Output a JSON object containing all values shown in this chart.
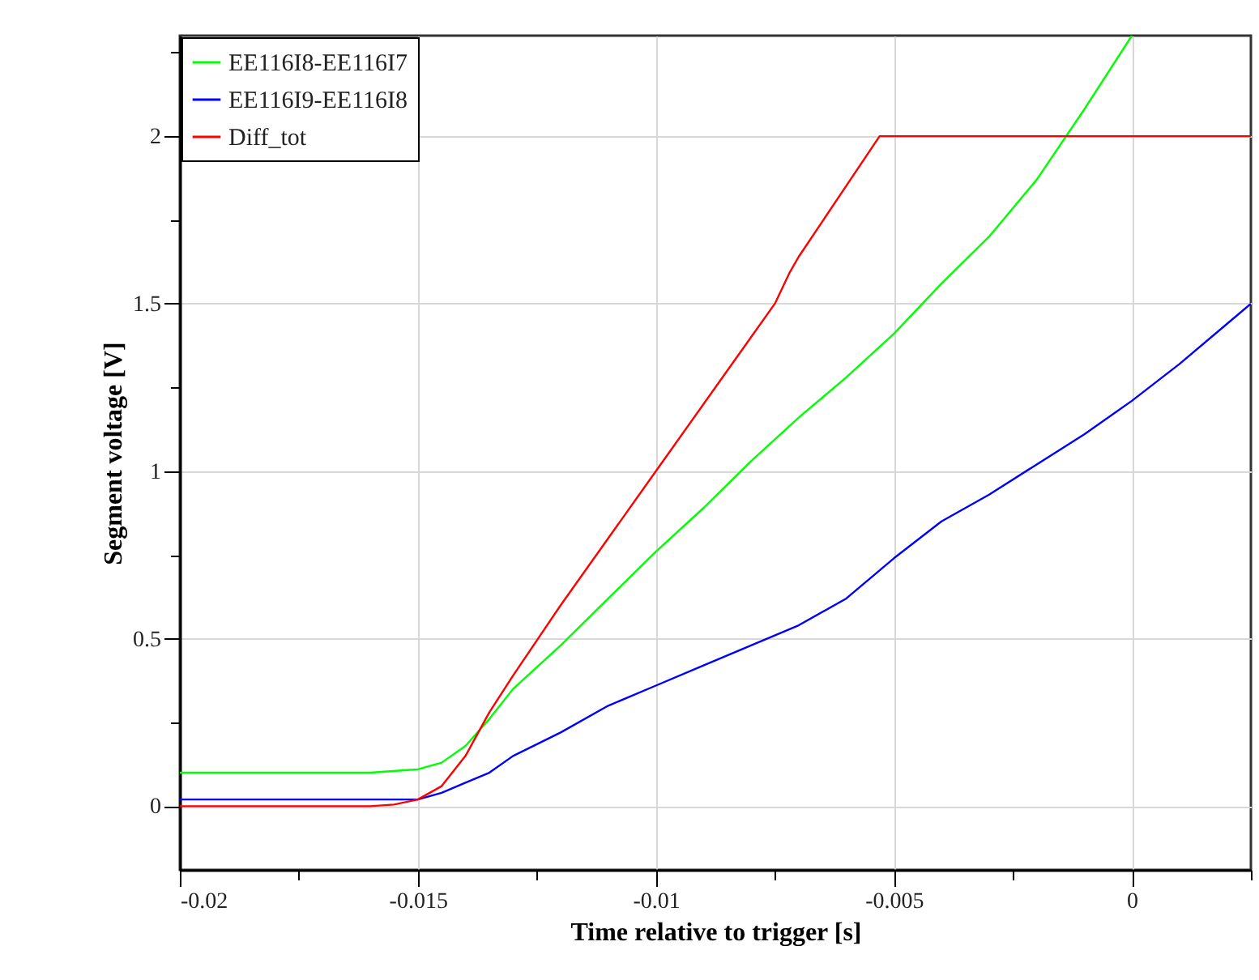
{
  "chart_data": {
    "type": "line",
    "xlabel": "Time relative to trigger [s]",
    "ylabel": "Segment voltage [V]",
    "xlim": [
      -0.02,
      0.0025
    ],
    "ylim": [
      -0.19,
      2.3
    ],
    "xticks": [
      -0.02,
      {
        "value": -0.0175,
        "label": null
      },
      -0.015,
      {
        "value": -0.0125,
        "label": null
      },
      -0.01,
      {
        "value": -0.0075,
        "label": null
      },
      -0.005,
      {
        "value": -0.0025,
        "label": null
      },
      0,
      {
        "value": 0.0025,
        "label": null
      }
    ],
    "yticks": [
      0,
      {
        "value": 0.25,
        "label": null
      },
      0.5,
      {
        "value": 0.75,
        "label": null
      },
      1,
      {
        "value": 1.25,
        "label": null
      },
      1.5,
      {
        "value": 1.75,
        "label": null
      },
      2,
      {
        "value": 2.25,
        "label": null
      }
    ],
    "grid": true,
    "legend": "top left",
    "line_style": "solid",
    "marker": "none",
    "series": [
      {
        "name": "EE116I8-EE116I7",
        "color": "#00ff00",
        "x": [
          -0.02,
          -0.018,
          -0.016,
          -0.015,
          -0.0145,
          -0.014,
          -0.0135,
          -0.013,
          -0.012,
          -0.011,
          -0.01,
          -0.009,
          -0.008,
          -0.007,
          -0.006,
          -0.005,
          -0.004,
          -0.003,
          -0.002,
          -0.001,
          0
        ],
        "values": [
          0.1,
          0.1,
          0.1,
          0.11,
          0.13,
          0.18,
          0.26,
          0.35,
          0.48,
          0.62,
          0.76,
          0.89,
          1.03,
          1.16,
          1.28,
          1.41,
          1.56,
          1.7,
          1.87,
          2.08,
          2.3
        ]
      },
      {
        "name": "EE116I9-EE116I8",
        "color": "#0000ff",
        "x": [
          -0.02,
          -0.018,
          -0.016,
          -0.015,
          -0.0145,
          -0.014,
          -0.0135,
          -0.013,
          -0.012,
          -0.011,
          -0.01,
          -0.009,
          -0.008,
          -0.007,
          -0.006,
          -0.005,
          -0.004,
          -0.003,
          -0.002,
          -0.001,
          0,
          0.001,
          0.002,
          0.0025
        ],
        "values": [
          0.02,
          0.02,
          0.02,
          0.02,
          0.04,
          0.07,
          0.1,
          0.15,
          0.22,
          0.3,
          0.36,
          0.42,
          0.48,
          0.54,
          0.62,
          0.74,
          0.85,
          0.93,
          1.02,
          1.11,
          1.21,
          1.32,
          1.44,
          1.5
        ]
      },
      {
        "name": "Diff_tot",
        "color": "#ff0000",
        "x": [
          -0.02,
          -0.016,
          -0.0155,
          -0.015,
          -0.0145,
          -0.014,
          -0.0135,
          -0.013,
          -0.012,
          -0.011,
          -0.01,
          -0.009,
          -0.008,
          -0.0075,
          -0.0072,
          -0.007,
          -0.0053,
          0.0025
        ],
        "values": [
          0,
          0,
          0.005,
          0.02,
          0.06,
          0.15,
          0.28,
          0.39,
          0.6,
          0.8,
          1.0,
          1.2,
          1.4,
          1.5,
          1.59,
          1.64,
          2.0,
          2.0
        ]
      }
    ]
  }
}
